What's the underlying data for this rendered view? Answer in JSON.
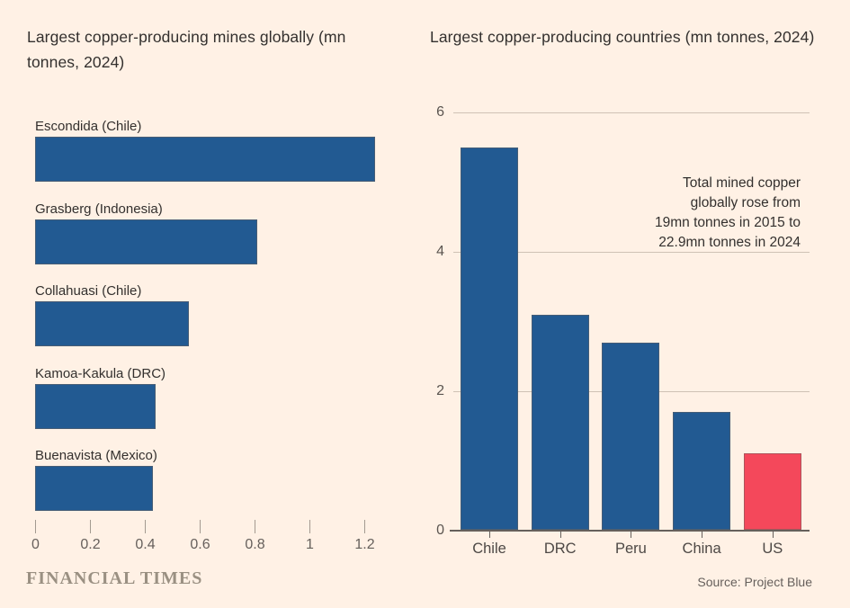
{
  "page": {
    "background": "#FFF1E5",
    "text_color": "#33302E",
    "axis_color": "#66605C",
    "gridline_color": "#CFC2B5"
  },
  "footer": {
    "brand": "FINANCIAL TIMES",
    "source": "Source: Project Blue"
  },
  "chart_data": [
    {
      "type": "bar",
      "orientation": "horizontal",
      "title": "Largest copper-producing mines globally (mn tonnes, 2024)",
      "categories": [
        "Escondida (Chile)",
        "Grasberg (Indonesia)",
        "Collahuasi (Chile)",
        "Kamoa-Kakula (DRC)",
        "Buenavista (Mexico)"
      ],
      "values": [
        1.24,
        0.81,
        0.56,
        0.44,
        0.43
      ],
      "xlim": [
        0,
        1.2
      ],
      "x_ticks": [
        0,
        0.2,
        0.4,
        0.6,
        0.8,
        1,
        1.2
      ],
      "x_tick_labels": [
        "0",
        "0.2",
        "0.4",
        "0.6",
        "0.8",
        "1",
        "1.2"
      ],
      "bar_color": "#225A92",
      "grid": false,
      "legend": "none"
    },
    {
      "type": "bar",
      "orientation": "vertical",
      "title": "Largest copper-producing countries (mn tonnes, 2024)",
      "categories": [
        "Chile",
        "DRC",
        "Peru",
        "China",
        "US"
      ],
      "values": [
        5.5,
        3.1,
        2.7,
        1.7,
        1.1
      ],
      "ylim": [
        0,
        6
      ],
      "y_ticks": [
        0,
        2,
        4,
        6
      ],
      "bar_colors": [
        "#225A92",
        "#225A92",
        "#225A92",
        "#225A92",
        "#F4485B"
      ],
      "highlight_color": "#F4485B",
      "annotation_lines": [
        "Total mined copper",
        "globally rose from",
        "19mn tonnes in 2015 to",
        "22.9mn tonnes in 2024"
      ],
      "grid": true,
      "legend": "none"
    }
  ]
}
